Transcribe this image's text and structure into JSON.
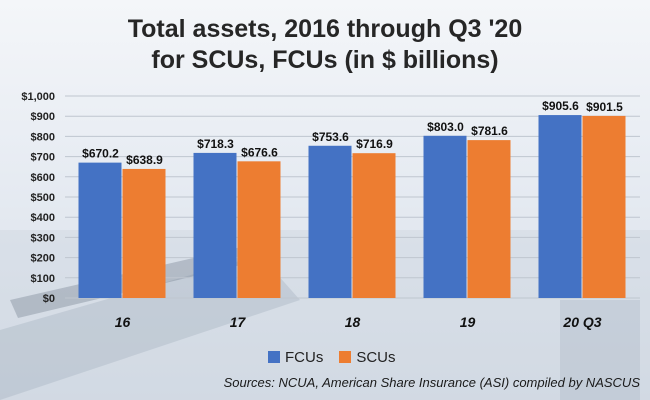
{
  "title": "Total assets, 2016 through Q3 '20\nfor SCUs, FCUs (in $ billions)",
  "source": "Sources: NCUA, American Share Insurance (ASI) compiled by NASCUS",
  "colors": {
    "FCUs": "#4472c4",
    "SCUs": "#ed7d31"
  },
  "chart_data": {
    "type": "bar",
    "categories": [
      "16",
      "17",
      "18",
      "19",
      "20 Q3"
    ],
    "series": [
      {
        "name": "FCUs",
        "values": [
          670.2,
          718.3,
          753.6,
          803.0,
          905.6
        ],
        "labels": [
          "$670.2",
          "$718.3",
          "$753.6",
          "$803.0",
          "$905.6"
        ]
      },
      {
        "name": "SCUs",
        "values": [
          638.9,
          676.6,
          716.9,
          781.6,
          901.5
        ],
        "labels": [
          "$638.9",
          "$676.6",
          "$716.9",
          "$781.6",
          "$901.5"
        ]
      }
    ],
    "ylim": [
      0,
      1000
    ],
    "yticks": [
      0,
      100,
      200,
      300,
      400,
      500,
      600,
      700,
      800,
      900,
      1000
    ],
    "ytick_labels": [
      "$0",
      "$100",
      "$200",
      "$300",
      "$400",
      "$500",
      "$600",
      "$700",
      "$800",
      "$900",
      "$1,000"
    ],
    "grid": true,
    "legend": "bottom"
  }
}
